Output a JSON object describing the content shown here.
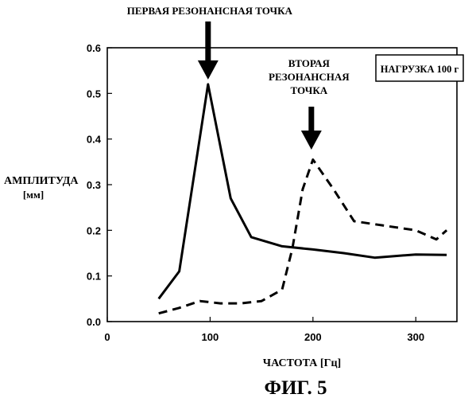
{
  "chart_data": {
    "type": "line",
    "title": "ФИГ. 5",
    "xlabel": "ЧАСТОТА [Гц]",
    "ylabel_line1": "АМПЛИТУДА",
    "ylabel_line2": "[мм]",
    "xlim": [
      0,
      340
    ],
    "ylim": [
      0,
      0.6
    ],
    "xticks": [
      0,
      100,
      200,
      300
    ],
    "xtick_labels": [
      "0",
      "100",
      "200",
      "300"
    ],
    "yticks": [
      0,
      0.1,
      0.2,
      0.3,
      0.4,
      0.5,
      0.6
    ],
    "ytick_labels": [
      "0.0",
      "0.1",
      "0.2",
      "0.3",
      "0.4",
      "0.5",
      "0.6"
    ],
    "grid": false,
    "legend_box": "НАГРУЗКА 100 г",
    "series": [
      {
        "style": "solid",
        "x": [
          50,
          70,
          98,
          120,
          140,
          170,
          200,
          230,
          260,
          300,
          330
        ],
        "y": [
          0.05,
          0.11,
          0.52,
          0.27,
          0.185,
          0.165,
          0.158,
          0.15,
          0.14,
          0.147,
          0.146
        ]
      },
      {
        "style": "dashed",
        "x": [
          50,
          70,
          90,
          110,
          130,
          150,
          170,
          180,
          190,
          200,
          220,
          240,
          270,
          300,
          320,
          330
        ],
        "y": [
          0.018,
          0.03,
          0.045,
          0.04,
          0.04,
          0.045,
          0.07,
          0.16,
          0.29,
          0.355,
          0.29,
          0.22,
          0.21,
          0.2,
          0.18,
          0.2
        ]
      }
    ],
    "annotations": [
      {
        "id": "first",
        "text": "ПЕРВАЯ РЕЗОНАНСНАЯ ТОЧКА",
        "x": 98,
        "y": 0.52
      },
      {
        "id": "second",
        "lines": [
          "ВТОРАЯ",
          "РЕЗОНАНСНАЯ",
          "ТОЧКА"
        ],
        "x": 200,
        "y": 0.355
      }
    ]
  }
}
